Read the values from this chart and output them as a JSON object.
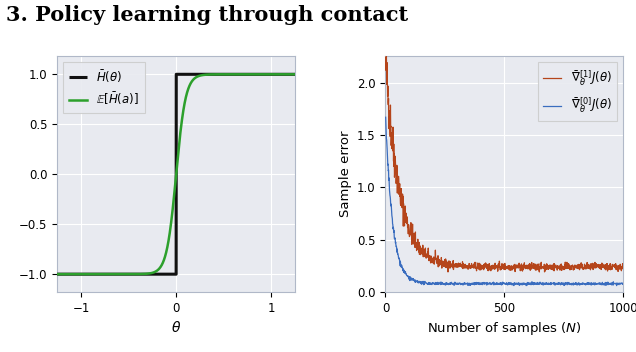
{
  "title": "3. Policy learning through contact",
  "title_fontsize": 15,
  "title_fontweight": "bold",
  "bg_color": "#e8eaf0",
  "left_plot": {
    "xlabel": "$\\theta$",
    "xlim": [
      -1.25,
      1.25
    ],
    "ylim": [
      -1.18,
      1.18
    ],
    "xticks": [
      -1,
      0,
      1
    ],
    "yticks": [
      -1.0,
      -0.5,
      0.0,
      0.5,
      1.0
    ],
    "step_color": "#111111",
    "sigmoid_color": "#2ca02c",
    "step_label": "$\\bar{H}(\\theta)$",
    "sigmoid_label": "$\\mathbb{E}[\\bar{H}(a)]$",
    "sigmoid_scale": 10
  },
  "right_plot": {
    "xlabel": "Number of samples ($N$)",
    "ylabel": "Sample error",
    "xlim": [
      0,
      1000
    ],
    "ylim": [
      0,
      2.25
    ],
    "xticks": [
      0,
      500,
      1000
    ],
    "yticks": [
      0.0,
      0.5,
      1.0,
      1.5,
      2.0
    ],
    "color_grad1": "#b5451b",
    "color_grad0": "#3a6dbf",
    "label_grad1": "$\\bar{\\nabla}_{\\theta}^{[1]}J(\\theta)$",
    "label_grad0": "$\\bar{\\nabla}_{\\theta}^{[0]}J(\\theta)$",
    "N": 1000,
    "seed": 42,
    "grad1_start": 2.2,
    "grad1_end": 0.24,
    "grad0_start": 1.68,
    "grad0_end": 0.08
  }
}
